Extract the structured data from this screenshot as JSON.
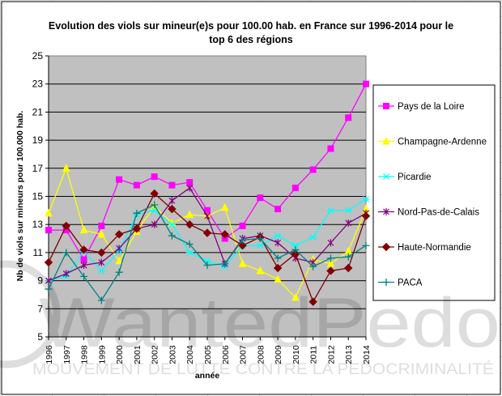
{
  "chart_data": {
    "type": "line",
    "title_line1": "Evolution des viols sur mineur(e)s pour 100.00 hab. en France sur 1996-2014 pour le",
    "title_line2": "top 6 des régions",
    "xlabel": "année",
    "ylabel": "Nb de viols sur mineurs pour 100.000 hab.",
    "ylim": [
      5,
      25
    ],
    "yticks": [
      "5",
      "7",
      "9",
      "11",
      "13",
      "15",
      "17",
      "19",
      "21",
      "23",
      "25"
    ],
    "categories": [
      "1996",
      "1997",
      "1998",
      "1999",
      "2000",
      "2001",
      "2002",
      "2003",
      "2004",
      "2005",
      "2006",
      "2007",
      "2008",
      "2009",
      "2010",
      "2011",
      "2012",
      "2013",
      "2014"
    ],
    "grid": true,
    "plot_background": "#c0c0c0",
    "legend_position": "right",
    "series": [
      {
        "name": "Pays de la Loire",
        "color": "#ff00ff",
        "marker": "square",
        "values": [
          12.6,
          12.6,
          10.5,
          12.9,
          16.2,
          15.8,
          16.4,
          15.8,
          16.0,
          14.0,
          12.0,
          12.9,
          14.9,
          14.1,
          15.6,
          16.9,
          18.4,
          20.6,
          23.0
        ]
      },
      {
        "name": "Champagne-Ardenne",
        "color": "#ffff00",
        "marker": "triangle",
        "values": [
          13.8,
          17.0,
          12.6,
          12.3,
          10.4,
          12.5,
          14.3,
          13.1,
          13.7,
          13.6,
          14.2,
          10.2,
          9.7,
          9.1,
          7.8,
          10.5,
          10.2,
          11.1,
          14.1
        ]
      },
      {
        "name": "Picardie",
        "color": "#00ffff",
        "marker": "asterisk",
        "values": [
          9.0,
          9.3,
          11.1,
          9.7,
          11.1,
          13.7,
          14.0,
          13.0,
          11.0,
          10.4,
          10.0,
          11.5,
          11.5,
          12.2,
          11.5,
          12.1,
          14.0,
          14.0,
          14.8
        ]
      },
      {
        "name": "Nord-Pas-de-Calais",
        "color": "#800080",
        "marker": "star",
        "values": [
          9.0,
          9.5,
          10.1,
          10.3,
          11.3,
          12.7,
          13.0,
          14.7,
          15.6,
          13.6,
          10.2,
          12.0,
          12.2,
          11.7,
          10.6,
          10.3,
          11.7,
          13.1,
          13.8
        ]
      },
      {
        "name": "Haute-Normandie",
        "color": "#800000",
        "marker": "diamond",
        "values": [
          10.3,
          12.9,
          11.2,
          11.0,
          12.3,
          12.7,
          15.2,
          14.1,
          13.0,
          12.4,
          12.3,
          11.5,
          12.1,
          9.9,
          10.9,
          7.5,
          9.7,
          9.9,
          13.6
        ]
      },
      {
        "name": "PACA",
        "color": "#008080",
        "marker": "plus",
        "values": [
          8.4,
          11.0,
          9.3,
          7.6,
          9.6,
          13.8,
          14.4,
          12.2,
          11.6,
          10.1,
          10.2,
          11.9,
          12.0,
          10.6,
          11.2,
          10.0,
          10.6,
          10.7,
          11.5
        ]
      }
    ]
  },
  "watermark": {
    "logo_text": "WantedPedo",
    "tagline": "MOUVEMENT DE LUTTE CONTRE LA PEDOCRIMINALITÉ"
  }
}
